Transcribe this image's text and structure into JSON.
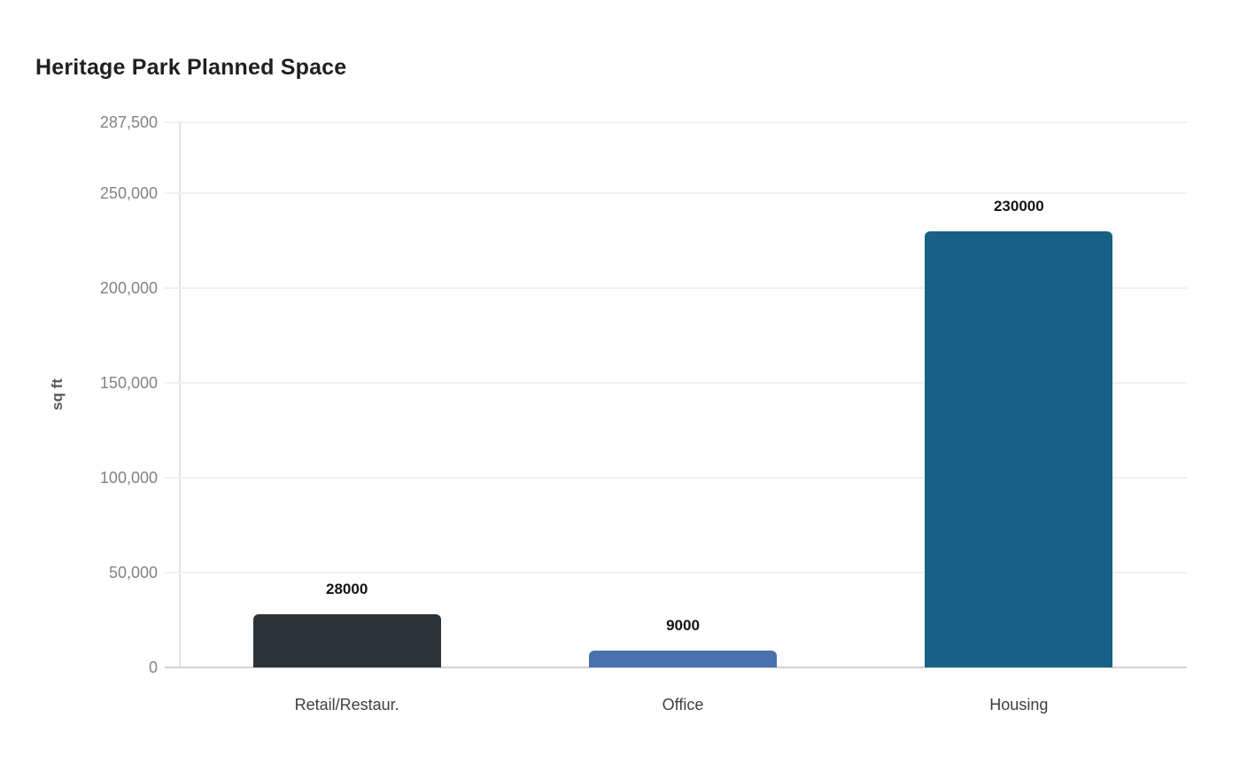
{
  "page": {
    "background": "#ffffff"
  },
  "chart_data": {
    "type": "bar",
    "title": "Heritage Park Planned Space",
    "xlabel": "",
    "ylabel": "sq ft",
    "categories": [
      "Retail/Restaur.",
      "Office",
      "Housing"
    ],
    "values": [
      28000,
      9000,
      230000
    ],
    "bar_value_labels": [
      "28000",
      "9000",
      "230000"
    ],
    "bar_colors": [
      "#2c3437",
      "#4a70ad",
      "#176187"
    ],
    "ylim": [
      0,
      287500
    ],
    "yticks": [
      0,
      50000,
      100000,
      150000,
      200000,
      250000,
      287500
    ],
    "ytick_labels": [
      "0",
      "50,000",
      "100,000",
      "150,000",
      "200,000",
      "250,000",
      "287,500"
    ],
    "grid": true,
    "legend": false,
    "colors": {
      "grid": "#f0f0f0",
      "x_axis_line": "#d2d2d2",
      "y_axis_line": "#e2e2e2",
      "title_text": "#202020",
      "ytick_text": "#838383",
      "xtick_text": "#3f3f3f",
      "value_label_text": "#141414",
      "ylabel_text": "#595959"
    }
  }
}
